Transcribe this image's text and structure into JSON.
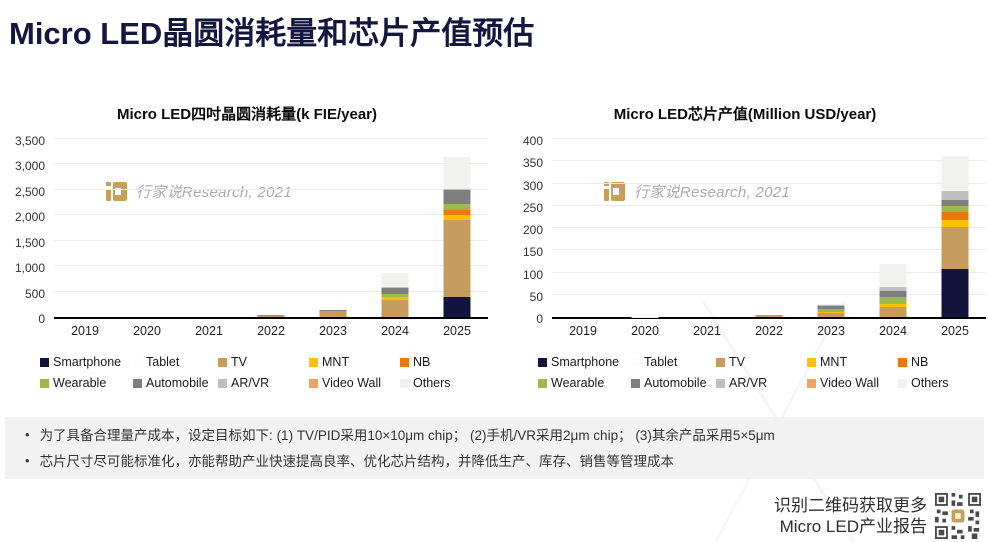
{
  "page_title": "Micro LED晶圆消耗量和芯片产值预估",
  "watermark": {
    "logo_icon": "hangjiashuo-logo-icon",
    "text": "行家说Research, 2021",
    "logo_color": "#c5a05a"
  },
  "chart_data": [
    {
      "type": "bar",
      "stacked": true,
      "title": "Micro LED四吋晶圆消耗量(k FIE/year)",
      "categories": [
        "2019",
        "2020",
        "2021",
        "2022",
        "2023",
        "2024",
        "2025"
      ],
      "ylim": [
        0,
        3500
      ],
      "ytick_step": 500,
      "grid": true,
      "legend_position": "bottom",
      "series": [
        {
          "name": "Smartphone",
          "color": "#12143c",
          "values": [
            0,
            0,
            0,
            0,
            0,
            0,
            400
          ]
        },
        {
          "name": "Tablet",
          "color": "#fdfdfb",
          "values": [
            0,
            0,
            0,
            0,
            0,
            0,
            0
          ]
        },
        {
          "name": "TV",
          "color": "#c69c5f",
          "values": [
            0,
            0,
            0,
            25,
            90,
            330,
            1500
          ]
        },
        {
          "name": "MNT",
          "color": "#ffc000",
          "values": [
            0,
            0,
            0,
            0,
            15,
            60,
            100
          ]
        },
        {
          "name": "NB",
          "color": "#e8790d",
          "values": [
            0,
            0,
            0,
            20,
            0,
            0,
            110
          ]
        },
        {
          "name": "Wearable",
          "color": "#9ab94e",
          "values": [
            0,
            0,
            0,
            0,
            15,
            60,
            110
          ]
        },
        {
          "name": "Automobile",
          "color": "#7f7f7f",
          "values": [
            0,
            0,
            0,
            0,
            12,
            120,
            270
          ]
        },
        {
          "name": "AR/VR",
          "color": "#bfbfbf",
          "values": [
            0,
            0,
            0,
            0,
            0,
            15,
            20
          ]
        },
        {
          "name": "Video Wall",
          "color": "#efa35f",
          "values": [
            0,
            0,
            0,
            0,
            0,
            0,
            0
          ]
        },
        {
          "name": "Others",
          "color": "#f1f1ef",
          "values": [
            0,
            0,
            0,
            0,
            0,
            290,
            640
          ]
        }
      ]
    },
    {
      "type": "bar",
      "stacked": true,
      "title": "Micro LED芯片产值(Million USD/year)",
      "categories": [
        "2019",
        "2020",
        "2021",
        "2022",
        "2023",
        "2024",
        "2025"
      ],
      "ylim": [
        0,
        400
      ],
      "ytick_step": 50,
      "grid": true,
      "legend_position": "bottom",
      "series": [
        {
          "name": "Smartphone",
          "color": "#12143c",
          "values": [
            0,
            0,
            0,
            0,
            0,
            0,
            107
          ]
        },
        {
          "name": "Tablet",
          "color": "#fdfdfb",
          "values": [
            0,
            0,
            0,
            0,
            0,
            0,
            0
          ]
        },
        {
          "name": "TV",
          "color": "#c69c5f",
          "values": [
            0,
            0,
            0,
            3,
            8,
            23,
            95
          ]
        },
        {
          "name": "MNT",
          "color": "#ffc000",
          "values": [
            0,
            0,
            0,
            0,
            3,
            7,
            16
          ]
        },
        {
          "name": "NB",
          "color": "#e8790d",
          "values": [
            0,
            0,
            0,
            0,
            0,
            0,
            18
          ]
        },
        {
          "name": "Wearable",
          "color": "#9ab94e",
          "values": [
            0,
            0,
            0,
            1,
            8,
            14,
            14
          ]
        },
        {
          "name": "Automobile",
          "color": "#7f7f7f",
          "values": [
            0,
            0,
            0,
            0,
            5,
            14,
            14
          ]
        },
        {
          "name": "AR/VR",
          "color": "#bfbfbf",
          "values": [
            0,
            0,
            0,
            0,
            2,
            9,
            20
          ]
        },
        {
          "name": "Video Wall",
          "color": "#efa35f",
          "values": [
            0,
            0,
            0,
            0,
            0,
            0,
            0
          ]
        },
        {
          "name": "Others",
          "color": "#f1f1ef",
          "values": [
            0,
            1,
            0,
            1,
            4,
            52,
            77
          ]
        }
      ]
    }
  ],
  "notes": {
    "bullets": [
      "为了具备合理量产成本，设定目标如下: (1) TV/PID采用10×10μm chip； (2)手机/VR采用2μm chip； (3)其余产品采用5×5μm",
      "芯片尺寸尽可能标准化，亦能帮助产业快速提高良率、优化芯片结构，并降低生产、库存、销售等管理成本"
    ]
  },
  "footer": {
    "line1": "识别二维码获取更多",
    "line2": "Micro LED产业报告",
    "qr_icon": "qr-code-icon"
  },
  "colors": {
    "title_navy": "#14163f",
    "notes_band_bg": "#f2f2f2",
    "watermark_gold": "#c5a05a"
  }
}
